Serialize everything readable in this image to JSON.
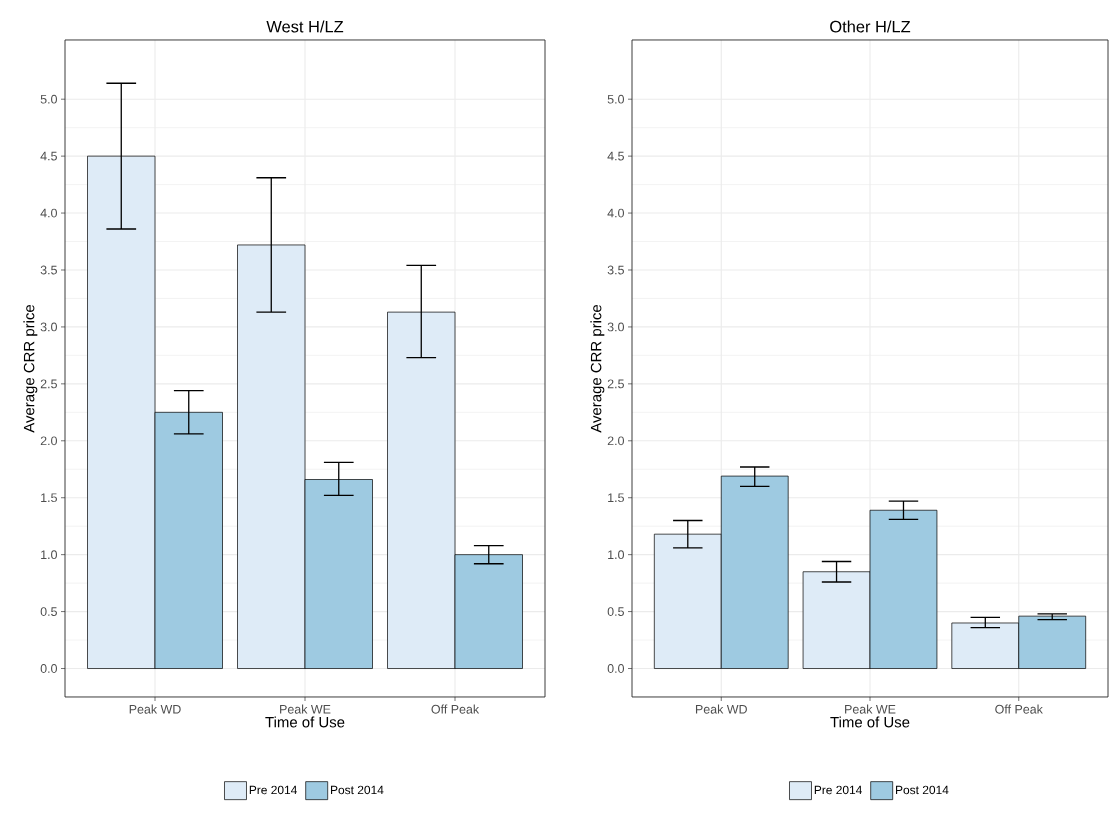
{
  "chart_data": [
    {
      "type": "bar",
      "title": "West H/LZ",
      "xlabel": "Time of Use",
      "ylabel": "Average CRR price",
      "categories": [
        "Peak WD",
        "Peak WE",
        "Off Peak"
      ],
      "series": [
        {
          "name": "Pre 2014",
          "color": "#deebf7",
          "values": [
            4.5,
            3.72,
            3.13
          ],
          "errors": [
            [
              3.86,
              5.14
            ],
            [
              3.13,
              4.31
            ],
            [
              2.73,
              3.54
            ]
          ]
        },
        {
          "name": "Post 2014",
          "color": "#9ecae1",
          "values": [
            2.25,
            1.66,
            1.0
          ],
          "errors": [
            [
              2.06,
              2.44
            ],
            [
              1.52,
              1.81
            ],
            [
              0.92,
              1.08
            ]
          ]
        }
      ],
      "ylim": [
        -0.25,
        5.52
      ],
      "yticks": [
        {
          "value": 0,
          "label": "0.0"
        },
        {
          "value": 0.5,
          "label": "0.5"
        },
        {
          "value": 1,
          "label": "1.0"
        },
        {
          "value": 1.5,
          "label": "1.5"
        },
        {
          "value": 2,
          "label": "2.0"
        },
        {
          "value": 2.5,
          "label": "2.5"
        },
        {
          "value": 3,
          "label": "3.0"
        },
        {
          "value": 3.5,
          "label": "3.5"
        },
        {
          "value": 4,
          "label": "4.0"
        },
        {
          "value": 4.5,
          "label": "4.5"
        },
        {
          "value": 5,
          "label": "5.0"
        }
      ],
      "grid": true,
      "legend": "bottom"
    },
    {
      "type": "bar",
      "title": "Other H/LZ",
      "xlabel": "Time of Use",
      "ylabel": "Average CRR price",
      "categories": [
        "Peak WD",
        "Peak WE",
        "Off Peak"
      ],
      "series": [
        {
          "name": "Pre 2014",
          "color": "#deebf7",
          "values": [
            1.18,
            0.85,
            0.4
          ],
          "errors": [
            [
              1.06,
              1.3
            ],
            [
              0.76,
              0.94
            ],
            [
              0.36,
              0.45
            ]
          ]
        },
        {
          "name": "Post 2014",
          "color": "#9ecae1",
          "values": [
            1.69,
            1.39,
            0.46
          ],
          "errors": [
            [
              1.6,
              1.77
            ],
            [
              1.31,
              1.47
            ],
            [
              0.43,
              0.48
            ]
          ]
        }
      ],
      "ylim": [
        -0.25,
        5.52
      ],
      "yticks": [
        {
          "value": 0,
          "label": "0.0"
        },
        {
          "value": 0.5,
          "label": "0.5"
        },
        {
          "value": 1,
          "label": "1.0"
        },
        {
          "value": 1.5,
          "label": "1.5"
        },
        {
          "value": 2,
          "label": "2.0"
        },
        {
          "value": 2.5,
          "label": "2.5"
        },
        {
          "value": 3,
          "label": "3.0"
        },
        {
          "value": 3.5,
          "label": "3.5"
        },
        {
          "value": 4,
          "label": "4.0"
        },
        {
          "value": 4.5,
          "label": "4.5"
        },
        {
          "value": 5,
          "label": "5.0"
        }
      ],
      "grid": true,
      "legend": "bottom"
    }
  ]
}
